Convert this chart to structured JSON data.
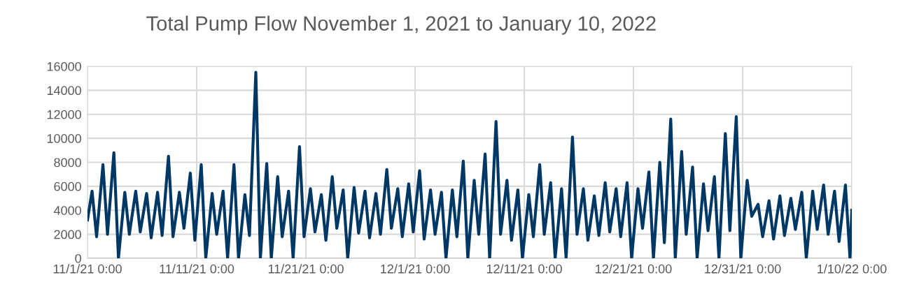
{
  "chart_data": {
    "type": "line",
    "title": "Total Pump Flow November 1, 2021 to January 10, 2022",
    "x": [
      "2021-11-01T00:00",
      "2021-11-01T10:00",
      "2021-11-01T20:00",
      "2021-11-02T10:00",
      "2021-11-02T20:00",
      "2021-11-03T10:00",
      "2021-11-03T20:00",
      "2021-11-04T10:00",
      "2021-11-04T20:00",
      "2021-11-05T10:00",
      "2021-11-05T20:00",
      "2021-11-06T10:00",
      "2021-11-06T20:00",
      "2021-11-07T10:00",
      "2021-11-07T20:00",
      "2021-11-08T10:00",
      "2021-11-08T20:00",
      "2021-11-09T10:00",
      "2021-11-09T20:00",
      "2021-11-10T10:00",
      "2021-11-10T20:00",
      "2021-11-11T10:00",
      "2021-11-11T20:00",
      "2021-11-12T10:00",
      "2021-11-12T20:00",
      "2021-11-13T10:00",
      "2021-11-13T20:00",
      "2021-11-14T10:00",
      "2021-11-14T20:00",
      "2021-11-15T10:00",
      "2021-11-15T20:00",
      "2021-11-16T10:00",
      "2021-11-16T20:00",
      "2021-11-17T10:00",
      "2021-11-17T20:00",
      "2021-11-18T10:00",
      "2021-11-18T20:00",
      "2021-11-19T10:00",
      "2021-11-19T20:00",
      "2021-11-20T10:00",
      "2021-11-20T20:00",
      "2021-11-21T10:00",
      "2021-11-21T20:00",
      "2021-11-22T10:00",
      "2021-11-22T20:00",
      "2021-11-23T10:00",
      "2021-11-23T20:00",
      "2021-11-24T10:00",
      "2021-11-24T20:00",
      "2021-11-25T10:00",
      "2021-11-25T20:00",
      "2021-11-26T10:00",
      "2021-11-26T20:00",
      "2021-11-27T10:00",
      "2021-11-27T20:00",
      "2021-11-28T10:00",
      "2021-11-28T20:00",
      "2021-11-29T10:00",
      "2021-11-29T20:00",
      "2021-11-30T10:00",
      "2021-11-30T20:00",
      "2021-12-01T10:00",
      "2021-12-01T20:00",
      "2021-12-02T10:00",
      "2021-12-02T20:00",
      "2021-12-03T10:00",
      "2021-12-03T20:00",
      "2021-12-04T10:00",
      "2021-12-04T20:00",
      "2021-12-05T10:00",
      "2021-12-05T20:00",
      "2021-12-06T10:00",
      "2021-12-06T20:00",
      "2021-12-07T10:00",
      "2021-12-07T20:00",
      "2021-12-08T10:00",
      "2021-12-08T20:00",
      "2021-12-09T10:00",
      "2021-12-09T20:00",
      "2021-12-10T10:00",
      "2021-12-10T20:00",
      "2021-12-11T10:00",
      "2021-12-11T20:00",
      "2021-12-12T10:00",
      "2021-12-12T20:00",
      "2021-12-13T10:00",
      "2021-12-13T20:00",
      "2021-12-14T10:00",
      "2021-12-14T20:00",
      "2021-12-15T10:00",
      "2021-12-15T20:00",
      "2021-12-16T10:00",
      "2021-12-16T20:00",
      "2021-12-17T10:00",
      "2021-12-17T20:00",
      "2021-12-18T10:00",
      "2021-12-18T20:00",
      "2021-12-19T10:00",
      "2021-12-19T20:00",
      "2021-12-20T10:00",
      "2021-12-20T20:00",
      "2021-12-21T10:00",
      "2021-12-21T20:00",
      "2021-12-22T10:00",
      "2021-12-22T20:00",
      "2021-12-23T10:00",
      "2021-12-23T20:00",
      "2021-12-24T10:00",
      "2021-12-24T20:00",
      "2021-12-25T10:00",
      "2021-12-25T20:00",
      "2021-12-26T10:00",
      "2021-12-26T20:00",
      "2021-12-27T10:00",
      "2021-12-27T20:00",
      "2021-12-28T10:00",
      "2021-12-28T20:00",
      "2021-12-29T10:00",
      "2021-12-29T20:00",
      "2021-12-30T10:00",
      "2021-12-30T20:00",
      "2021-12-31T10:00",
      "2021-12-31T20:00",
      "2022-01-01T10:00",
      "2022-01-01T20:00",
      "2022-01-02T10:00",
      "2022-01-02T20:00",
      "2022-01-03T10:00",
      "2022-01-03T20:00",
      "2022-01-04T10:00",
      "2022-01-04T20:00",
      "2022-01-05T10:00",
      "2022-01-05T20:00",
      "2022-01-06T10:00",
      "2022-01-06T20:00",
      "2022-01-07T10:00",
      "2022-01-07T20:00",
      "2022-01-08T10:00",
      "2022-01-08T20:00",
      "2022-01-09T10:00",
      "2022-01-09T20:00",
      "2022-01-10T00:00"
    ],
    "values": [
      3200,
      5600,
      1800,
      7800,
      2000,
      8800,
      0,
      5500,
      2000,
      5600,
      2200,
      5400,
      1700,
      5500,
      1900,
      8500,
      1800,
      5500,
      2500,
      7100,
      1500,
      7800,
      0,
      5400,
      2000,
      5600,
      0,
      7800,
      0,
      5300,
      1900,
      15500,
      0,
      7900,
      0,
      6800,
      1800,
      5600,
      0,
      9300,
      1800,
      5800,
      2200,
      5300,
      1500,
      6800,
      2500,
      5700,
      0,
      5900,
      2100,
      5600,
      1700,
      5400,
      2000,
      7400,
      2500,
      5800,
      1800,
      6200,
      2200,
      7300,
      1600,
      5700,
      2000,
      5500,
      0,
      5700,
      1800,
      8100,
      0,
      6500,
      2000,
      8700,
      0,
      11400,
      2000,
      6500,
      1500,
      5700,
      0,
      5300,
      1800,
      7800,
      2000,
      6300,
      0,
      5800,
      0,
      10100,
      2000,
      5800,
      1500,
      5200,
      1900,
      6300,
      2200,
      5800,
      1800,
      6300,
      0,
      5800,
      2500,
      7200,
      0,
      8000,
      1300,
      11600,
      0,
      8900,
      2000,
      7600,
      0,
      6200,
      2300,
      6800,
      0,
      10400,
      2300,
      11800,
      0,
      6500,
      3500,
      4500,
      1800,
      4800,
      1600,
      5200,
      1900,
      5000,
      2400,
      5500,
      0,
      5600,
      2400,
      6100,
      2000,
      5600,
      1400,
      6100,
      0,
      4000
    ],
    "color": "#003865",
    "xlim": [
      "2021-11-01T00:00",
      "2022-01-10T00:00"
    ],
    "xticks": [
      {
        "value": "2021-11-01T00:00",
        "label": "11/1/21 0:00"
      },
      {
        "value": "2021-11-11T00:00",
        "label": "11/11/21 0:00"
      },
      {
        "value": "2021-11-21T00:00",
        "label": "11/21/21 0:00"
      },
      {
        "value": "2021-12-01T00:00",
        "label": "12/1/21 0:00"
      },
      {
        "value": "2021-12-11T00:00",
        "label": "12/11/21 0:00"
      },
      {
        "value": "2021-12-21T00:00",
        "label": "12/21/21 0:00"
      },
      {
        "value": "2021-12-31T00:00",
        "label": "12/31/21 0:00"
      },
      {
        "value": "2022-01-10T00:00",
        "label": "1/10/22 0:00"
      }
    ],
    "ylim": [
      0,
      16000
    ],
    "yticks": [
      0,
      2000,
      4000,
      6000,
      8000,
      10000,
      12000,
      14000,
      16000
    ],
    "grid": true,
    "line_style": "solid",
    "marker": "none"
  }
}
